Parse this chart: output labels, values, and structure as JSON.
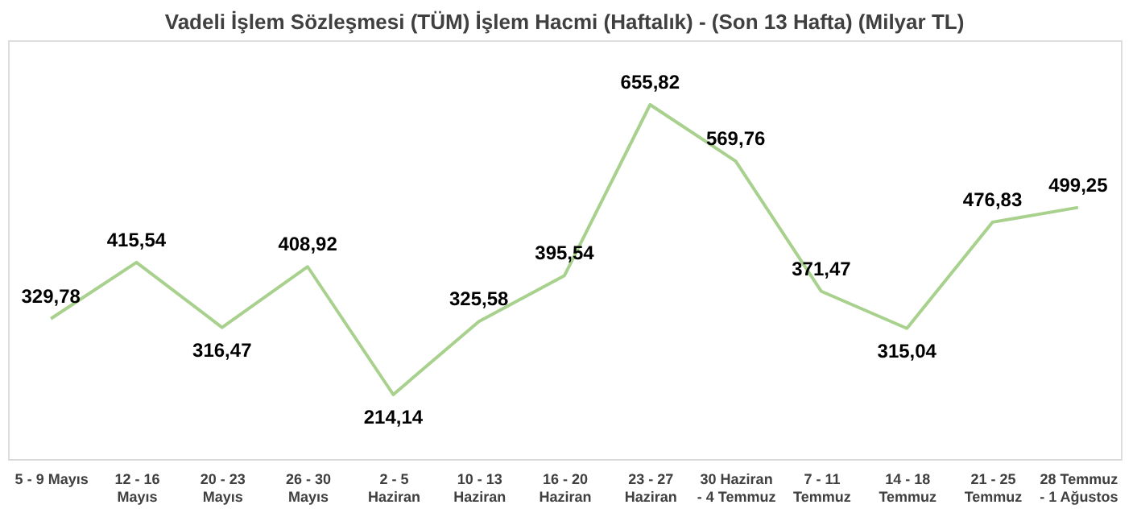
{
  "chart_data": {
    "type": "line",
    "title": "Vadeli İşlem Sözleşmesi (TÜM) İşlem Hacmi (Haftalık) - (Son 13 Hafta) (Milyar TL)",
    "categories": [
      "5 - 9 Mayıs",
      "12 - 16\nMayıs",
      "20 - 23\nMayıs",
      "26 - 30\nMayıs",
      "2 - 5\nHaziran",
      "10 - 13\nHaziran",
      "16 - 20\nHaziran",
      "23 - 27\nHaziran",
      "30 Haziran\n- 4 Temmuz",
      "7 - 11\nTemmuz",
      "14 - 18\nTemmuz",
      "21 - 25\nTemmuz",
      "28 Temmuz\n- 1 Ağustos"
    ],
    "series": [
      {
        "color": "#a9d18e",
        "values": [
          329.78,
          415.54,
          316.47,
          408.92,
          214.14,
          325.58,
          395.54,
          655.82,
          569.76,
          371.47,
          315.04,
          476.83,
          499.25
        ],
        "value_labels": [
          "329,78",
          "415,54",
          "316,47",
          "408,92",
          "214,14",
          "325,58",
          "395,54",
          "655,82",
          "569,76",
          "371,47",
          "315,04",
          "476,83",
          "499,25"
        ]
      }
    ],
    "grid": false,
    "marker": "none",
    "line_style": "solid"
  }
}
